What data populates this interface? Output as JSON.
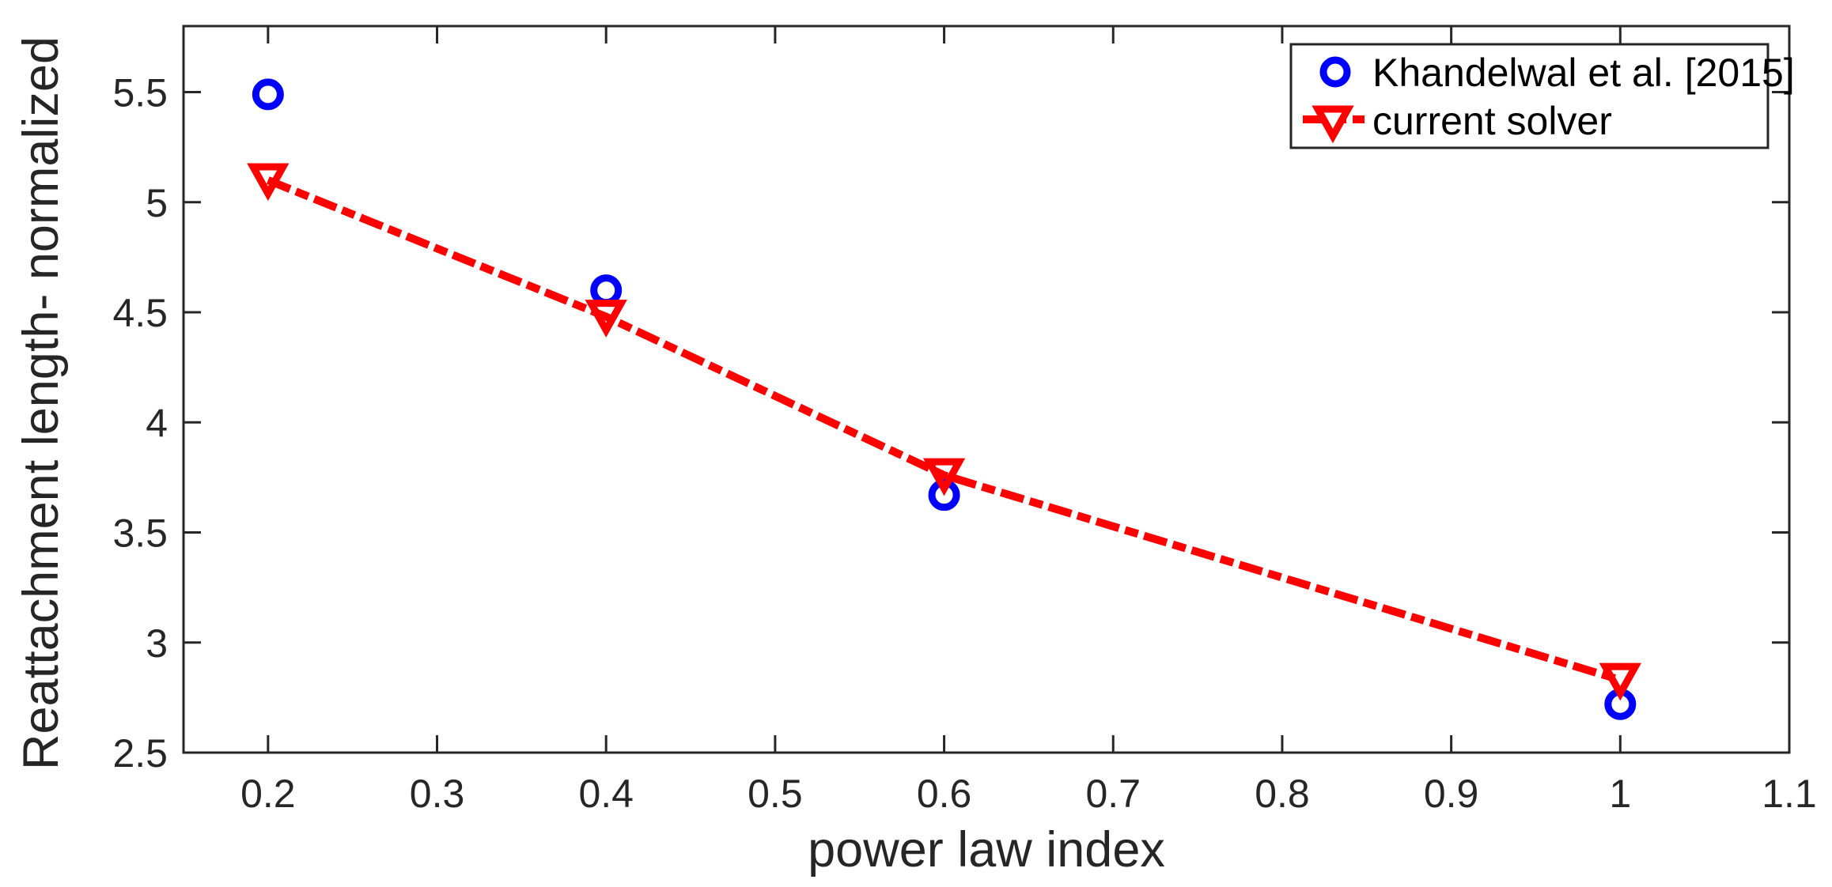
{
  "chart_data": {
    "type": "line",
    "title": "",
    "xlabel": "power law index",
    "ylabel": "Reattachment length- normalized",
    "xlim": [
      0.15,
      1.1
    ],
    "ylim": [
      2.5,
      5.8
    ],
    "xticks": [
      0.2,
      0.3,
      0.4,
      0.5,
      0.6,
      0.7,
      0.8,
      0.9,
      1.0,
      1.1
    ],
    "xtick_labels": [
      "0.2",
      "0.3",
      "0.4",
      "0.5",
      "0.6",
      "0.7",
      "0.8",
      "0.9",
      "1",
      "1.1"
    ],
    "yticks": [
      2.5,
      3,
      3.5,
      4,
      4.5,
      5,
      5.5
    ],
    "ytick_labels": [
      "2.5",
      "3",
      "3.5",
      "4",
      "4.5",
      "5",
      "5.5"
    ],
    "grid": false,
    "legend_position": "upper right",
    "x": [
      0.2,
      0.4,
      0.6,
      1.0
    ],
    "series": [
      {
        "name": "Khandelwal et al. [2015]",
        "values": [
          5.49,
          4.6,
          3.67,
          2.72
        ],
        "color": "#0000FF",
        "marker": "circle",
        "line": "none"
      },
      {
        "name": "current solver",
        "values": [
          5.1,
          4.48,
          3.76,
          2.83
        ],
        "color": "#FF0000",
        "marker": "triangle-down",
        "line": "dash-dot"
      }
    ]
  },
  "axes": {
    "xlabel": "power law index",
    "ylabel": "Reattachment length- normalized"
  },
  "legend": {
    "items": [
      {
        "label": "Khandelwal et al. [2015]"
      },
      {
        "label": "current solver"
      }
    ]
  }
}
